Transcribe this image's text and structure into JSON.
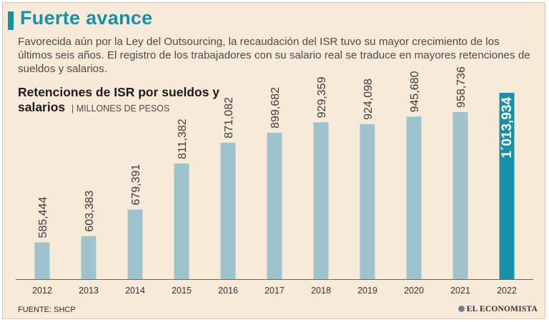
{
  "header": {
    "title": "Fuerte avance",
    "intro": "Favorecida aún por la Ley del Outsourcing, la recaudación del ISR tuvo su mayor crecimiento de los últimos seis años. El registro de los trabajadores con su salario real se traduce en mayores retenciones de sueldos y salarios."
  },
  "chart_data": {
    "type": "bar",
    "title": "Retenciones de ISR por sueldos y salarios",
    "unit": "| MILLONES DE PESOS",
    "categories": [
      "2012",
      "2013",
      "2014",
      "2015",
      "2016",
      "2017",
      "2018",
      "2019",
      "2020",
      "2021",
      "2022"
    ],
    "values": [
      585444,
      603383,
      679391,
      811382,
      871082,
      899682,
      929359,
      924098,
      945680,
      958736,
      1013934
    ],
    "labels": [
      "585,444",
      "603,383",
      "679,391",
      "811,382",
      "871,082",
      "899,682",
      "929,359",
      "924,098",
      "945,680",
      "958,736",
      "1´013,934"
    ],
    "highlight_index": 10,
    "colors": {
      "bar": "#9fc3cc",
      "highlight": "#1a8fa8",
      "label": "#3a3a3a",
      "highlight_label": "#ffffff",
      "axis": "#666666"
    },
    "xlabel": "",
    "ylabel": "",
    "ylim": [
      480000,
      1013934
    ]
  },
  "footer": {
    "source": "FUENTE: SHCP",
    "brand": "EL ECONOMISTA"
  }
}
